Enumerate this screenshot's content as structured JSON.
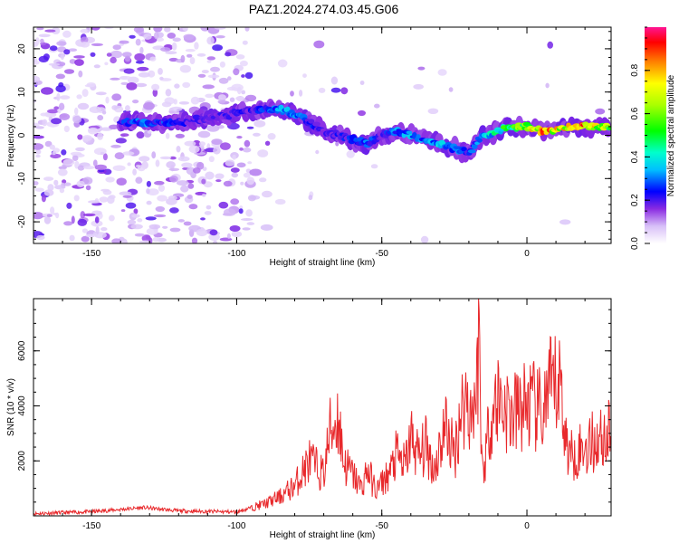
{
  "title": "PAZ1.2024.274.03.45.G06",
  "colors": {
    "snr_line": "#e8282b",
    "spectrogram_low": "#e6d2fa",
    "spectrogram_mid": "#7a1ee8",
    "background": "#ffffff"
  },
  "chart_data": [
    {
      "type": "heatmap",
      "title": "PAZ1.2024.274.03.45.G06",
      "xlabel": "Height of straight line (km)",
      "ylabel": "Frequency (Hz)",
      "xlim": [
        -170,
        29
      ],
      "ylim": [
        -25,
        25
      ],
      "xticks": [
        {
          "value": -150,
          "label": "-150"
        },
        {
          "value": -100,
          "label": "-100"
        },
        {
          "value": -50,
          "label": "-50"
        },
        {
          "value": 0,
          "label": "0"
        }
      ],
      "yticks": [
        {
          "value": 20,
          "label": "20"
        },
        {
          "value": 10,
          "label": "10"
        },
        {
          "value": 0,
          "label": "0"
        },
        {
          "value": -10,
          "label": "-10"
        },
        {
          "value": -20,
          "label": "-20"
        }
      ],
      "colorbar": {
        "label": "Normalized spectral amplitude",
        "range": [
          0.0,
          1.0
        ],
        "ticks": [
          {
            "value": 0.0,
            "label": "0.0"
          },
          {
            "value": 0.2,
            "label": "0.2"
          },
          {
            "value": 0.4,
            "label": "0.4"
          },
          {
            "value": 0.6,
            "label": "0.6"
          },
          {
            "value": 0.8,
            "label": "0.8"
          }
        ]
      },
      "ridge": {
        "x": [
          -140,
          -130,
          -120,
          -110,
          -100,
          -90,
          -85,
          -80,
          -75,
          -70,
          -65,
          -60,
          -55,
          -50,
          -45,
          -40,
          -35,
          -30,
          -25,
          -20,
          -15,
          -10,
          -5,
          0,
          5,
          10,
          15,
          20,
          29
        ],
        "frequency": [
          3,
          3,
          3,
          4,
          5,
          6,
          6,
          5,
          3,
          1,
          0,
          -1,
          -2,
          0,
          1,
          0,
          -1,
          -2,
          -3,
          -4,
          0,
          1,
          2,
          2,
          1,
          1,
          2,
          2,
          2
        ],
        "amplitude": [
          0.25,
          0.3,
          0.22,
          0.18,
          0.2,
          0.25,
          0.35,
          0.3,
          0.25,
          0.2,
          0.22,
          0.25,
          0.3,
          0.22,
          0.3,
          0.35,
          0.3,
          0.35,
          0.3,
          0.25,
          0.35,
          0.45,
          0.55,
          0.65,
          0.85,
          0.75,
          0.8,
          0.85,
          0.6
        ]
      }
    },
    {
      "type": "line",
      "xlabel": "Height of straight line (km)",
      "ylabel": "SNR (10 * v/v)",
      "xlim": [
        -170,
        29
      ],
      "ylim": [
        0,
        7900
      ],
      "xticks": [
        {
          "value": -150,
          "label": "-150"
        },
        {
          "value": -100,
          "label": "-100"
        },
        {
          "value": -50,
          "label": "-50"
        },
        {
          "value": 0,
          "label": "0"
        }
      ],
      "yticks": [
        {
          "value": 2000,
          "label": "2000"
        },
        {
          "value": 4000,
          "label": "4000"
        },
        {
          "value": 6000,
          "label": "6000"
        }
      ],
      "series": [
        {
          "x": [
            -170,
            -150,
            -132,
            -120,
            -100,
            -95,
            -90,
            -85,
            -80,
            -75,
            -70,
            -68,
            -65,
            -63,
            -60,
            -57,
            -55,
            -52,
            -50,
            -47,
            -45,
            -42,
            -40,
            -37,
            -35,
            -32,
            -30,
            -28,
            -25,
            -23,
            -21,
            -19,
            -17,
            -16.5,
            -16,
            -15,
            -13,
            -10,
            -5,
            0,
            5,
            8,
            12,
            13,
            15,
            20,
            25,
            29
          ],
          "y": [
            80,
            150,
            300,
            180,
            140,
            300,
            450,
            700,
            1100,
            2000,
            1500,
            3000,
            3600,
            1900,
            1500,
            1000,
            1700,
            900,
            1200,
            1600,
            2200,
            1800,
            2900,
            2100,
            2600,
            1700,
            2500,
            3300,
            2200,
            3700,
            4300,
            3700,
            4900,
            7900,
            2900,
            1600,
            3400,
            4300,
            3600,
            4100,
            3700,
            4500,
            4800,
            2900,
            2200,
            2500,
            2800,
            2950
          ]
        }
      ]
    }
  ]
}
